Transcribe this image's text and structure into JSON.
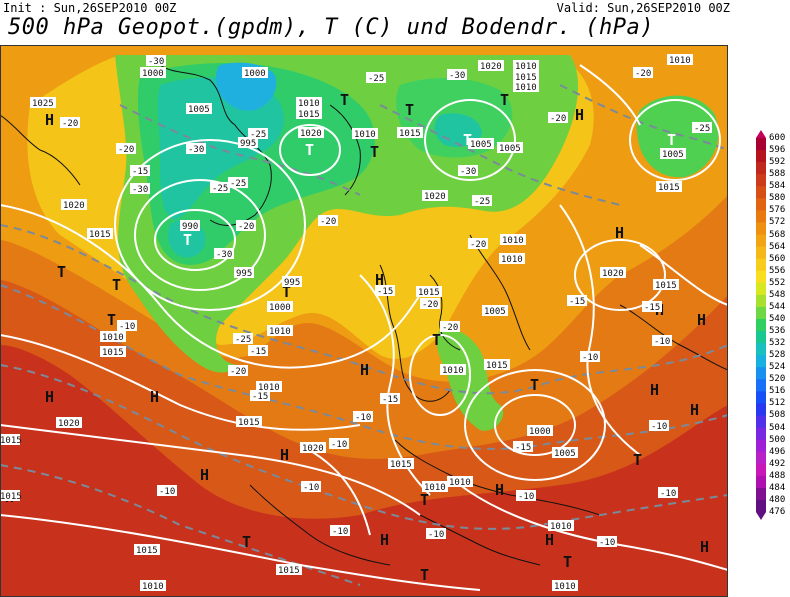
{
  "header": {
    "init": "Init : Sun,26SEP2010 00Z",
    "valid": "Valid: Sun,26SEP2010 00Z",
    "title": "500 hPa Geopot.(gpdm), T (C) und Bodendr. (hPa)"
  },
  "legend": {
    "levels": [
      "600",
      "596",
      "592",
      "588",
      "584",
      "580",
      "576",
      "572",
      "568",
      "564",
      "560",
      "556",
      "552",
      "548",
      "544",
      "540",
      "536",
      "532",
      "528",
      "524",
      "520",
      "516",
      "512",
      "508",
      "504",
      "500",
      "496",
      "492",
      "488",
      "484",
      "480",
      "476"
    ],
    "colors": [
      "#c4005a",
      "#a80030",
      "#b5141e",
      "#c0281e",
      "#cc3c1a",
      "#d65016",
      "#e06412",
      "#e87a10",
      "#ee9010",
      "#f2a414",
      "#f6b818",
      "#f8cc1c",
      "#fade22",
      "#d8e820",
      "#a8e030",
      "#6ed844",
      "#30d060",
      "#18c890",
      "#18c0c0",
      "#18b0e0",
      "#1890f0",
      "#1870f8",
      "#1850f8",
      "#2838f0",
      "#5030e8",
      "#7828e0",
      "#a020d8",
      "#b820c8",
      "#c818b8",
      "#b010b0",
      "#801090",
      "#601080"
    ]
  },
  "map": {
    "high_markers": [
      "H",
      "H",
      "H",
      "H",
      "H",
      "H",
      "H",
      "H",
      "H",
      "H",
      "H",
      "H",
      "H",
      "H",
      "H",
      "H",
      "H",
      "H"
    ],
    "low_markers": [
      "T",
      "T",
      "T",
      "T",
      "T",
      "T",
      "T",
      "T",
      "T",
      "T",
      "T",
      "T",
      "T",
      "T",
      "T",
      "T",
      "T",
      "T",
      "T"
    ],
    "pressure_labels": [
      "1000",
      "1000",
      "1005",
      "1010",
      "1015",
      "1010",
      "1020",
      "1010",
      "1015",
      "1020",
      "1015",
      "1010",
      "1005",
      "1010",
      "1005",
      "1015",
      "1025",
      "1020",
      "1015",
      "1010",
      "1015",
      "1020",
      "1015",
      "1010",
      "1015",
      "1010",
      "1005",
      "1000",
      "990",
      "995",
      "995",
      "995",
      "1020",
      "1015",
      "1010",
      "1015",
      "1005",
      "1010",
      "1020",
      "1015",
      "1010",
      "1015",
      "1010",
      "1010",
      "1005",
      "1000",
      "1020",
      "1015",
      "1010",
      "1015",
      "1010",
      "1010",
      "1015"
    ],
    "temp_labels": [
      "-30",
      "-25",
      "-25",
      "-30",
      "-20",
      "-30",
      "-25",
      "-30",
      "-20",
      "-30",
      "-20",
      "-25",
      "-30",
      "-20",
      "-25",
      "-20",
      "-15",
      "-10",
      "-15",
      "-20",
      "-20",
      "-15",
      "-25",
      "-20",
      "-15",
      "-15",
      "-10",
      "-10",
      "-10",
      "-15",
      "-10",
      "-10",
      "-10",
      "-10",
      "-10",
      "-20",
      "-25",
      "-20",
      "-15",
      "-10",
      "-15",
      "-10",
      "-10",
      "-10"
    ]
  }
}
